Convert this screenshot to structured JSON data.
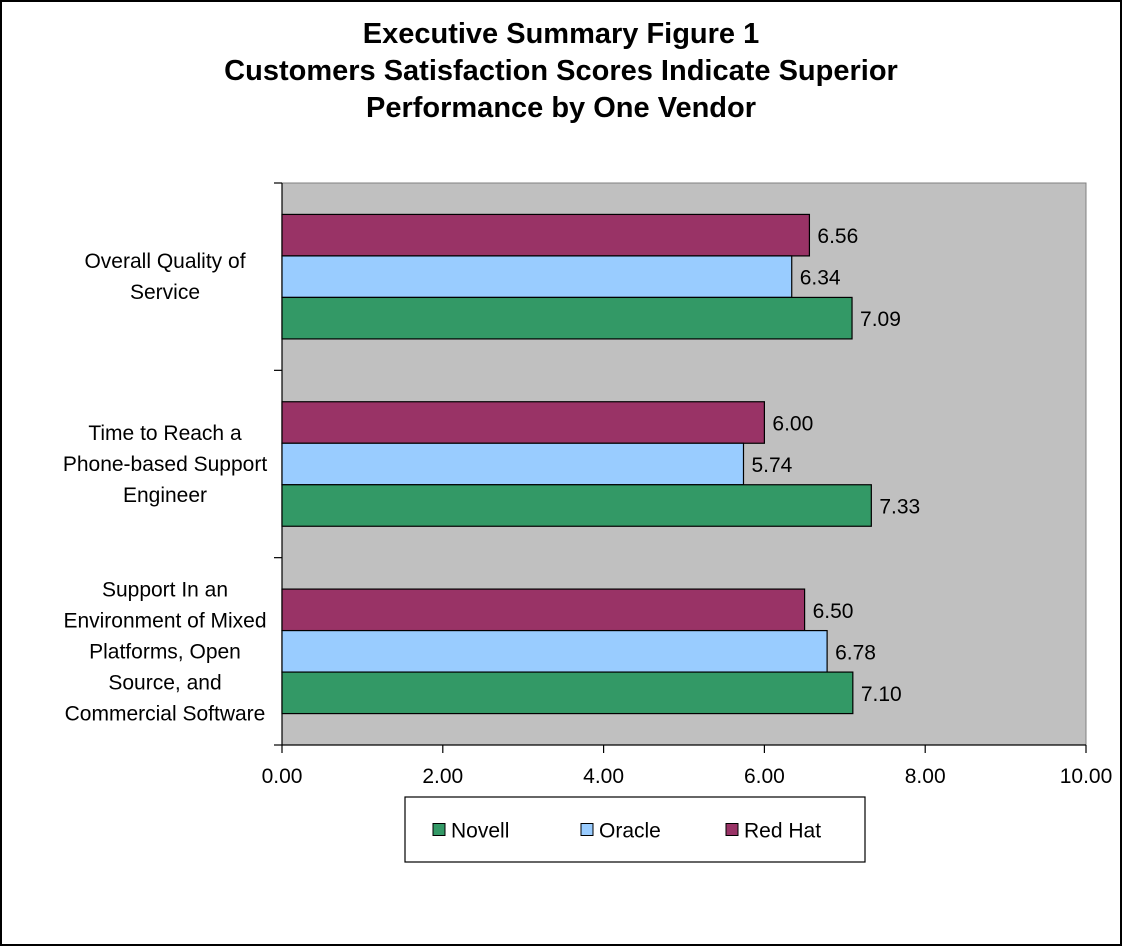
{
  "chart_data": {
    "type": "bar",
    "orientation": "horizontal",
    "title_lines": [
      "Executive Summary Figure 1",
      "Customers Satisfaction Scores Indicate Superior",
      "Performance by One Vendor"
    ],
    "categories": [
      [
        "Overall Quality of",
        "Service"
      ],
      [
        "Time to Reach a",
        "Phone-based Support",
        "Engineer"
      ],
      [
        "Support In an",
        "Environment of Mixed",
        "Platforms, Open",
        "Source, and",
        "Commercial Software"
      ]
    ],
    "series": [
      {
        "name": "Red Hat",
        "color": "#993366",
        "values": [
          6.56,
          6.0,
          6.5
        ],
        "labels": [
          "6.56",
          "6.00",
          "6.50"
        ]
      },
      {
        "name": "Oracle",
        "color": "#99ccff",
        "values": [
          6.34,
          5.74,
          6.78
        ],
        "labels": [
          "6.34",
          "5.74",
          "6.78"
        ]
      },
      {
        "name": "Novell",
        "color": "#339966",
        "values": [
          7.09,
          7.33,
          7.1
        ],
        "labels": [
          "7.09",
          "7.33",
          "7.10"
        ]
      }
    ],
    "legend_order": [
      "Novell",
      "Oracle",
      "Red Hat"
    ],
    "xlim": [
      0,
      10
    ],
    "x_ticks": [
      "0.00",
      "2.00",
      "4.00",
      "6.00",
      "8.00",
      "10.00"
    ],
    "plot_background": "#c0c0c0",
    "grid": false,
    "legend_position": "bottom"
  }
}
